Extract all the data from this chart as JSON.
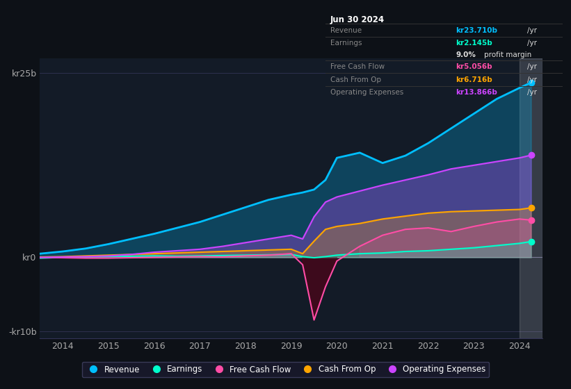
{
  "bg_color": "#0d1117",
  "plot_bg_color": "#131b27",
  "revenue_color": "#00bfff",
  "earnings_color": "#00ffcc",
  "fcf_color": "#ff4da6",
  "cashop_color": "#ffa500",
  "opex_color": "#cc44ff",
  "legend_entries": [
    "Revenue",
    "Earnings",
    "Free Cash Flow",
    "Cash From Op",
    "Operating Expenses"
  ],
  "info_box": {
    "date": "Jun 30 2024",
    "revenue_val": "kr23.710b",
    "earnings_val": "kr2.145b",
    "margin": "9.0%",
    "fcf_val": "kr5.056b",
    "cashop_val": "kr6.716b",
    "opex_val": "kr13.866b"
  }
}
